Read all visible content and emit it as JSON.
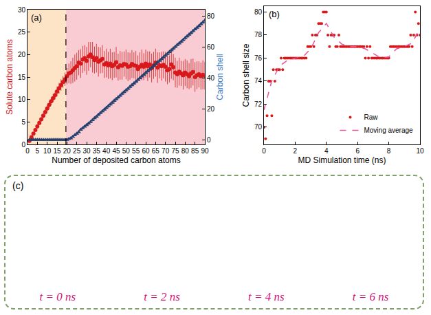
{
  "chart_data": [
    {
      "type": "scatter",
      "title": "(a)",
      "x_label": "Number of deposited carbon atoms",
      "y_label": "Solute carbon atoms",
      "y2_label": "Carbon shell",
      "xlim": [
        0,
        90
      ],
      "xticks": [
        0,
        5,
        10,
        15,
        20,
        25,
        30,
        35,
        40,
        45,
        50,
        55,
        60,
        65,
        70,
        75,
        80,
        85,
        90
      ],
      "ylim": [
        0,
        30
      ],
      "yticks": [
        0,
        5,
        10,
        15,
        20,
        25,
        30
      ],
      "y2lim": [
        -3,
        84
      ],
      "y2ticks": [
        0,
        20,
        40,
        60,
        80
      ],
      "grid": false,
      "regions": [
        {
          "from": 0,
          "to": 19.5,
          "color": "#fde4c6"
        },
        {
          "from": 19.5,
          "to": 90,
          "color": "#f8ccd2"
        }
      ],
      "series": [
        {
          "name": "Solute carbon atoms",
          "color": "#d7191c",
          "marker": "circle",
          "axis": "y",
          "x": [
            1,
            2,
            3,
            4,
            5,
            6,
            7,
            8,
            9,
            10,
            11,
            12,
            13,
            14,
            15,
            16,
            17,
            18,
            19,
            20,
            21,
            22,
            23,
            24,
            25,
            26,
            27,
            28,
            29,
            30,
            31,
            32,
            33,
            34,
            35,
            36,
            37,
            38,
            39,
            40,
            41,
            42,
            43,
            44,
            45,
            46,
            47,
            48,
            49,
            50,
            51,
            52,
            53,
            54,
            55,
            56,
            57,
            58,
            59,
            60,
            61,
            62,
            63,
            64,
            65,
            66,
            67,
            68,
            69,
            70,
            71,
            72,
            73,
            74,
            75,
            76,
            77,
            78,
            79,
            80,
            81,
            82,
            83,
            84,
            85,
            86,
            87,
            88,
            89,
            90
          ],
          "values": [
            0.8,
            1.6,
            2.4,
            3.2,
            4.0,
            4.8,
            5.6,
            6.4,
            7.2,
            8.0,
            8.8,
            9.6,
            10.3,
            11.0,
            11.8,
            12.5,
            13.2,
            13.9,
            14.5,
            15.2,
            15.8,
            16.0,
            16.5,
            17.0,
            17.4,
            18.2,
            18.0,
            18.9,
            19.2,
            18.6,
            19.6,
            20.0,
            19.4,
            18.8,
            19.2,
            18.4,
            18.7,
            19.0,
            17.8,
            18.1,
            17.6,
            18.0,
            17.4,
            17.7,
            18.3,
            17.2,
            17.6,
            17.5,
            17.9,
            17.8,
            17.3,
            17.4,
            17.9,
            17.6,
            17.5,
            16.8,
            17.3,
            17.7,
            17.3,
            18.0,
            17.4,
            17.8,
            17.0,
            17.6,
            18.2,
            17.1,
            17.6,
            17.4,
            17.7,
            17.3,
            16.5,
            16.8,
            17.8,
            17.2,
            16.0,
            15.6,
            16.2,
            15.8,
            15.4,
            16.0,
            15.6,
            15.2,
            15.8,
            16.1,
            15.0,
            15.4,
            15.6,
            15.2,
            15.5,
            15.3
          ],
          "error": [
            0.1,
            0.2,
            0.3,
            0.3,
            0.4,
            0.5,
            0.5,
            0.6,
            0.7,
            0.7,
            0.8,
            0.9,
            0.9,
            1.0,
            1.1,
            1.2,
            1.3,
            1.3,
            1.5,
            1.8,
            2.2,
            2.5,
            2.8,
            3.0,
            3.0,
            2.8,
            3.2,
            3.0,
            2.9,
            3.1,
            3.2,
            2.8,
            3.4,
            3.0,
            3.2,
            3.3,
            2.9,
            3.1,
            3.0,
            3.2,
            3.0,
            3.3,
            3.1,
            2.9,
            3.4,
            3.0,
            3.2,
            3.1,
            2.8,
            3.3,
            3.2,
            3.0,
            3.1,
            2.9,
            3.3,
            3.0,
            3.2,
            3.4,
            3.0,
            3.1,
            3.3,
            2.9,
            3.2,
            3.0,
            3.1,
            3.4,
            2.9,
            3.2,
            3.0,
            3.3,
            3.1,
            3.0,
            3.2,
            2.9,
            3.3,
            3.0,
            3.1,
            2.8,
            3.2,
            3.0,
            3.1,
            2.9,
            3.2,
            3.0,
            3.3,
            3.1,
            2.9,
            3.0,
            3.2,
            3.1
          ]
        },
        {
          "name": "Carbon shell",
          "color": "#24406e",
          "marker": "triangle-up",
          "axis": "y2",
          "x": [
            1,
            2,
            3,
            4,
            5,
            6,
            7,
            8,
            9,
            10,
            11,
            12,
            13,
            14,
            15,
            16,
            17,
            18,
            19,
            20,
            21,
            22,
            23,
            24,
            25,
            26,
            27,
            28,
            29,
            30,
            31,
            32,
            33,
            34,
            35,
            36,
            37,
            38,
            39,
            40,
            41,
            42,
            43,
            44,
            45,
            46,
            47,
            48,
            49,
            50,
            51,
            52,
            53,
            54,
            55,
            56,
            57,
            58,
            59,
            60,
            61,
            62,
            63,
            64,
            65,
            66,
            67,
            68,
            69,
            70,
            71,
            72,
            73,
            74,
            75,
            76,
            77,
            78,
            79,
            80,
            81,
            82,
            83,
            84,
            85,
            86,
            87,
            88,
            89,
            90
          ],
          "values": [
            0,
            0,
            0,
            0,
            0,
            0,
            0,
            0,
            0,
            0,
            0,
            0,
            0,
            0,
            0,
            0,
            0,
            0,
            0,
            0,
            0.5,
            1,
            2,
            3,
            4,
            5,
            6.5,
            7.5,
            8.5,
            9.5,
            10.5,
            11.5,
            12.8,
            14,
            15,
            16.2,
            17.3,
            18.4,
            19.5,
            20.6,
            21.8,
            22.9,
            24,
            25.2,
            26.3,
            27.4,
            28.5,
            29.7,
            30.8,
            31.9,
            33,
            34.2,
            35.3,
            36.4,
            37.5,
            38.7,
            39.8,
            40.9,
            42,
            43.2,
            44.3,
            45.4,
            46.5,
            47.7,
            48.8,
            49.9,
            51,
            52.2,
            53.3,
            54.4,
            55.5,
            56.7,
            57.8,
            58.9,
            60,
            61.2,
            62.3,
            63.4,
            64.5,
            65.7,
            66.8,
            67.9,
            69,
            70.2,
            71.3,
            72.4,
            73.5,
            74.7,
            75.8,
            77
          ],
          "error": [
            0,
            0,
            0,
            0,
            0,
            0,
            0,
            0,
            0,
            0,
            0,
            0,
            0,
            0,
            0,
            0,
            0,
            0,
            0,
            0,
            0.3,
            0.4,
            0.5,
            0.5,
            0.6,
            0.6,
            0.7,
            0.7,
            0.8,
            0.8,
            0.9,
            0.9,
            1.0,
            1.0,
            1.0,
            1.1,
            1.1,
            1.1,
            1.2,
            1.2,
            1.2,
            1.3,
            1.2,
            1.3,
            1.2,
            1.3,
            1.2,
            1.3,
            1.2,
            1.3,
            1.2,
            1.3,
            1.2,
            1.3,
            1.2,
            1.3,
            1.2,
            1.3,
            1.2,
            1.3,
            1.2,
            1.3,
            1.2,
            1.3,
            1.2,
            1.3,
            1.2,
            1.3,
            1.2,
            1.3,
            1.2,
            1.3,
            1.2,
            1.3,
            1.2,
            1.3,
            1.2,
            1.3,
            1.2,
            1.3,
            1.2,
            1.3,
            1.2,
            1.3,
            1.2,
            1.3,
            1.2,
            1.3,
            1.2,
            1.3
          ]
        }
      ]
    },
    {
      "type": "scatter",
      "title": "(b)",
      "x_label": "MD Simulation time (ns)",
      "y_label": "Carbon shell size",
      "xlim": [
        0,
        10
      ],
      "xticks": [
        0,
        2,
        4,
        6,
        8,
        10
      ],
      "ylim": [
        68.5,
        80.5
      ],
      "yticks": [
        70,
        72,
        74,
        76,
        78,
        80
      ],
      "grid": false,
      "legend": "lower right",
      "series": [
        {
          "name": "Raw",
          "color": "#d7191c",
          "type": "scatter",
          "marker": "circle",
          "x": [
            0,
            0.1,
            0.2,
            0.3,
            0.4,
            0.5,
            0.6,
            0.7,
            0.8,
            0.9,
            1,
            1.1,
            1.2,
            1.3,
            1.4,
            1.5,
            1.6,
            1.7,
            1.8,
            1.9,
            2,
            2.1,
            2.2,
            2.3,
            2.4,
            2.5,
            2.6,
            2.7,
            2.8,
            2.9,
            3,
            3.1,
            3.2,
            3.3,
            3.4,
            3.5,
            3.6,
            3.7,
            3.8,
            3.9,
            4,
            4.1,
            4.2,
            4.3,
            4.4,
            4.5,
            4.6,
            4.7,
            4.8,
            4.9,
            5,
            5.1,
            5.2,
            5.3,
            5.4,
            5.5,
            5.6,
            5.7,
            5.8,
            5.9,
            6,
            6.1,
            6.2,
            6.3,
            6.4,
            6.5,
            6.6,
            6.7,
            6.8,
            6.9,
            7,
            7.1,
            7.2,
            7.3,
            7.4,
            7.5,
            7.6,
            7.7,
            7.8,
            7.9,
            8,
            8.1,
            8.2,
            8.3,
            8.4,
            8.5,
            8.6,
            8.7,
            8.8,
            8.9,
            9,
            9.1,
            9.2,
            9.3,
            9.4,
            9.5,
            9.6,
            9.7,
            9.8,
            9.9,
            10
          ],
          "values": [
            70,
            69,
            71,
            74,
            74,
            71,
            75,
            74,
            75,
            75,
            75,
            76,
            75,
            76,
            76,
            76,
            76,
            76,
            76,
            76,
            76,
            76,
            76,
            76,
            76,
            76,
            76,
            76,
            77,
            77,
            77,
            78,
            77,
            78,
            78,
            79,
            79,
            79,
            80,
            80,
            80,
            78,
            77,
            78,
            78,
            78,
            77,
            77,
            78,
            77,
            77,
            77,
            77,
            77,
            77,
            77,
            77,
            77,
            77,
            77,
            77,
            77,
            77,
            77,
            77,
            76,
            77,
            76,
            77,
            76,
            76,
            76,
            76,
            76,
            76,
            76,
            76,
            76,
            76,
            76,
            76,
            77,
            77,
            77,
            77,
            77,
            77,
            77,
            77,
            77,
            77,
            77,
            77,
            77,
            78,
            77,
            78,
            80,
            78,
            79,
            78
          ]
        },
        {
          "name": "Moving average",
          "color": "#e8559a",
          "type": "line",
          "line_style": "dash",
          "x": [
            0,
            0.5,
            1,
            1.5,
            2,
            2.5,
            3,
            3.5,
            4,
            4.5,
            5,
            5.5,
            6,
            6.5,
            7,
            7.5,
            8,
            8.5,
            9,
            9.5,
            10
          ],
          "values": [
            71.5,
            74,
            75.3,
            75.8,
            76,
            76.1,
            76.8,
            78.2,
            79,
            77.8,
            77.2,
            77,
            77,
            76.8,
            76.4,
            76,
            76.1,
            76.8,
            77,
            77.3,
            78.6
          ]
        }
      ]
    }
  ],
  "panel_c": {
    "label": "(c)",
    "captions": [
      "t = 0 ns",
      "t = 2 ns",
      "t = 4 ns",
      "t = 6 ns"
    ]
  }
}
